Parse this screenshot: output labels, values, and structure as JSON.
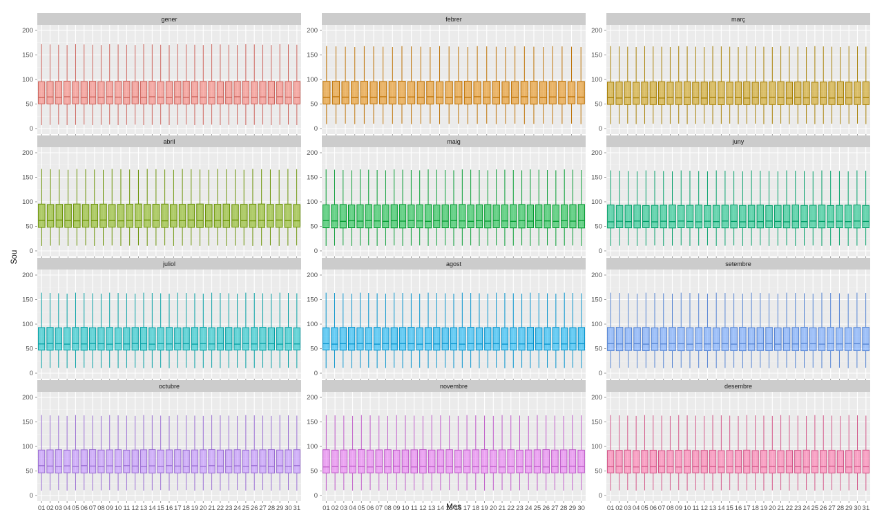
{
  "chart_data": {
    "type": "boxplot",
    "xlabel": "Mes",
    "ylabel": "Sou",
    "ylim": [
      0,
      200
    ],
    "yticks": [
      "0",
      "50",
      "100",
      "150",
      "200"
    ],
    "grid": true,
    "legend": "none",
    "facets": [
      {
        "name": "gener",
        "days": 31,
        "color": "#F8766D",
        "q1": 50,
        "median": 64,
        "q3": 96,
        "whisker_low": 7,
        "whisker_high": 172
      },
      {
        "name": "febrer",
        "days": 28,
        "color": "#E58700",
        "q1": 50,
        "median": 64,
        "q3": 96,
        "whisker_low": 9,
        "whisker_high": 168
      },
      {
        "name": "març",
        "days": 31,
        "color": "#C99800",
        "q1": 49,
        "median": 63,
        "q3": 95,
        "whisker_low": 9,
        "whisker_high": 168
      },
      {
        "name": "abril",
        "days": 30,
        "color": "#7CAE00",
        "q1": 48,
        "median": 62,
        "q3": 95,
        "whisker_low": 10,
        "whisker_high": 167
      },
      {
        "name": "maig",
        "days": 31,
        "color": "#00BA38",
        "q1": 47,
        "median": 61,
        "q3": 94,
        "whisker_low": 10,
        "whisker_high": 166
      },
      {
        "name": "juny",
        "days": 30,
        "color": "#00BF7D",
        "q1": 47,
        "median": 60,
        "q3": 93,
        "whisker_low": 10,
        "whisker_high": 164
      },
      {
        "name": "juliol",
        "days": 31,
        "color": "#00BFC4",
        "q1": 47,
        "median": 60,
        "q3": 93,
        "whisker_low": 10,
        "whisker_high": 164
      },
      {
        "name": "agost",
        "days": 31,
        "color": "#00B0F6",
        "q1": 47,
        "median": 60,
        "q3": 93,
        "whisker_low": 10,
        "whisker_high": 164
      },
      {
        "name": "setembre",
        "days": 30,
        "color": "#619CFF",
        "q1": 46,
        "median": 60,
        "q3": 93,
        "whisker_low": 10,
        "whisker_high": 164
      },
      {
        "name": "octubre",
        "days": 31,
        "color": "#B983FF",
        "q1": 46,
        "median": 60,
        "q3": 93,
        "whisker_low": 10,
        "whisker_high": 164
      },
      {
        "name": "novembre",
        "days": 30,
        "color": "#E76BF3",
        "q1": 46,
        "median": 59,
        "q3": 93,
        "whisker_low": 10,
        "whisker_high": 164
      },
      {
        "name": "desembre",
        "days": 31,
        "color": "#FF67A4",
        "q1": 46,
        "median": 59,
        "q3": 92,
        "whisker_low": 10,
        "whisker_high": 164
      }
    ]
  }
}
